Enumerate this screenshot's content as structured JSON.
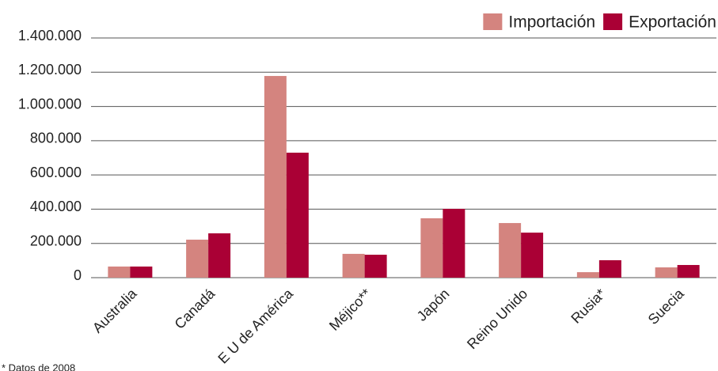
{
  "chart_data": {
    "type": "bar",
    "categories": [
      "Australia",
      "Canadá",
      "E U de América",
      "Méjico**",
      "Japón",
      "Reino Unido",
      "Rusia*",
      "Suecia"
    ],
    "series": [
      {
        "name": "Importación",
        "color": "#d4847f",
        "values": [
          65000,
          222000,
          1178000,
          139000,
          347000,
          319000,
          32000,
          60000
        ]
      },
      {
        "name": "Exportación",
        "color": "#aa0035",
        "values": [
          65000,
          259000,
          730000,
          134000,
          402000,
          263000,
          102000,
          74000
        ]
      }
    ],
    "ylim": [
      0,
      1400000
    ],
    "yticks": [
      0,
      {
        "value": 200000,
        "label": "200.000"
      },
      {
        "value": 400000,
        "label": "400.000"
      },
      {
        "value": 600000,
        "label": "600.000"
      },
      {
        "value": 800000,
        "label": "800.000"
      },
      {
        "value": 1000000,
        "label": "1.000.000"
      },
      {
        "value": 1200000,
        "label": "1.200.000"
      },
      {
        "value": 1400000,
        "label": "1.400.000"
      }
    ],
    "grid": true,
    "legend": "top-right",
    "footnote": "* Datos de 2008"
  }
}
